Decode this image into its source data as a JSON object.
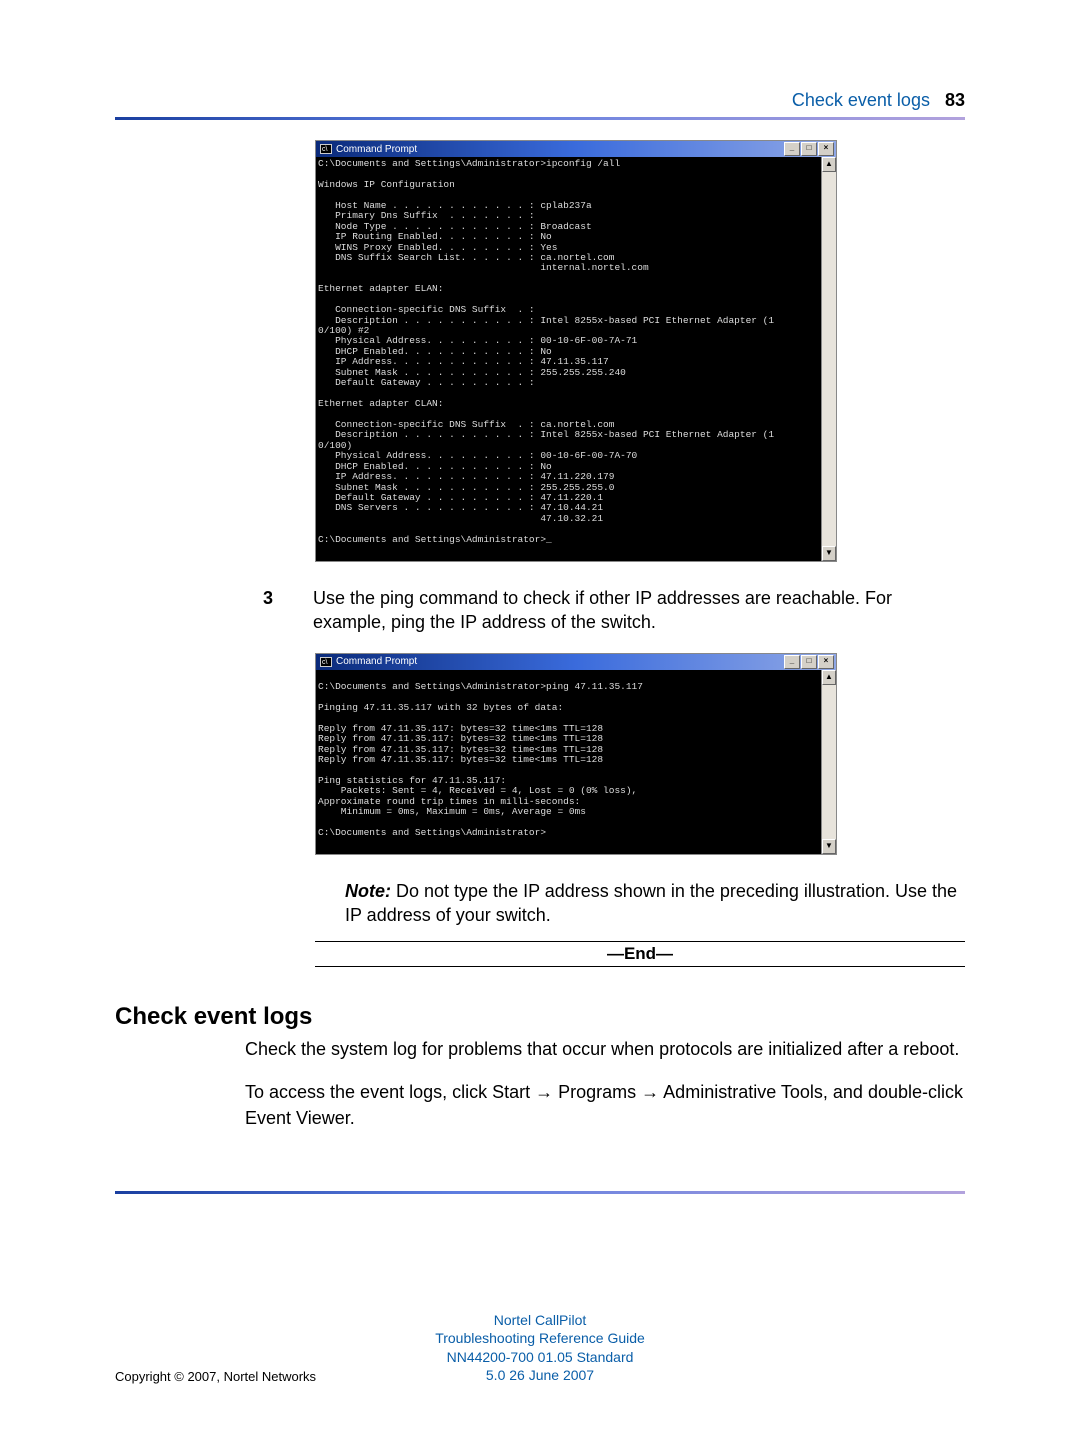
{
  "header": {
    "title": "Check event logs",
    "page": "83"
  },
  "cmd": {
    "windowTitle": "Command Prompt",
    "iconGlyph": "c\\",
    "btnMin": "_",
    "btnMax": "□",
    "btnClose": "×",
    "scrollUp": "▲",
    "scrollDown": "▼"
  },
  "terminal1": "C:\\Documents and Settings\\Administrator>ipconfig /all\n\nWindows IP Configuration\n\n   Host Name . . . . . . . . . . . . : cplab237a\n   Primary Dns Suffix  . . . . . . . :\n   Node Type . . . . . . . . . . . . : Broadcast\n   IP Routing Enabled. . . . . . . . : No\n   WINS Proxy Enabled. . . . . . . . : Yes\n   DNS Suffix Search List. . . . . . : ca.nortel.com\n                                       internal.nortel.com\n\nEthernet adapter ELAN:\n\n   Connection-specific DNS Suffix  . :\n   Description . . . . . . . . . . . : Intel 8255x-based PCI Ethernet Adapter (1\n0/100) #2\n   Physical Address. . . . . . . . . : 00-10-6F-00-7A-71\n   DHCP Enabled. . . . . . . . . . . : No\n   IP Address. . . . . . . . . . . . : 47.11.35.117\n   Subnet Mask . . . . . . . . . . . : 255.255.255.240\n   Default Gateway . . . . . . . . . :\n\nEthernet adapter CLAN:\n\n   Connection-specific DNS Suffix  . : ca.nortel.com\n   Description . . . . . . . . . . . : Intel 8255x-based PCI Ethernet Adapter (1\n0/100)\n   Physical Address. . . . . . . . . : 00-10-6F-00-7A-70\n   DHCP Enabled. . . . . . . . . . . : No\n   IP Address. . . . . . . . . . . . : 47.11.220.179\n   Subnet Mask . . . . . . . . . . . : 255.255.255.0\n   Default Gateway . . . . . . . . . : 47.11.220.1\n   DNS Servers . . . . . . . . . . . : 47.10.44.21\n                                       47.10.32.21\n\nC:\\Documents and Settings\\Administrator>_",
  "step3": {
    "num": "3",
    "text": "Use the ping command to check if other IP addresses are reachable. For example, ping the IP address of the switch."
  },
  "terminal2": "\nC:\\Documents and Settings\\Administrator>ping 47.11.35.117\n\nPinging 47.11.35.117 with 32 bytes of data:\n\nReply from 47.11.35.117: bytes=32 time<1ms TTL=128\nReply from 47.11.35.117: bytes=32 time<1ms TTL=128\nReply from 47.11.35.117: bytes=32 time<1ms TTL=128\nReply from 47.11.35.117: bytes=32 time<1ms TTL=128\n\nPing statistics for 47.11.35.117:\n    Packets: Sent = 4, Received = 4, Lost = 0 (0% loss),\nApproximate round trip times in milli-seconds:\n    Minimum = 0ms, Maximum = 0ms, Average = 0ms\n\nC:\\Documents and Settings\\Administrator>\n",
  "note": {
    "label": "Note:",
    "text": " Do not type the IP address shown in the preceding illustration. Use the IP address of your switch."
  },
  "end": "—End—",
  "section": {
    "heading": "Check event logs",
    "p1": "Check the system log for problems that occur when protocols are initialized after a reboot.",
    "p2a": "To access the event logs, click Start ",
    "p2b": " Programs ",
    "p2c": " Administrative Tools, and double-click Event Viewer.",
    "arrow": "→"
  },
  "footer": {
    "l1": "Nortel CallPilot",
    "l2": "Troubleshooting Reference Guide",
    "l3": "NN44200-700   01.05   Standard",
    "l4": "5.0   26 June 2007"
  },
  "copyright": "Copyright © 2007, Nortel Networks"
}
